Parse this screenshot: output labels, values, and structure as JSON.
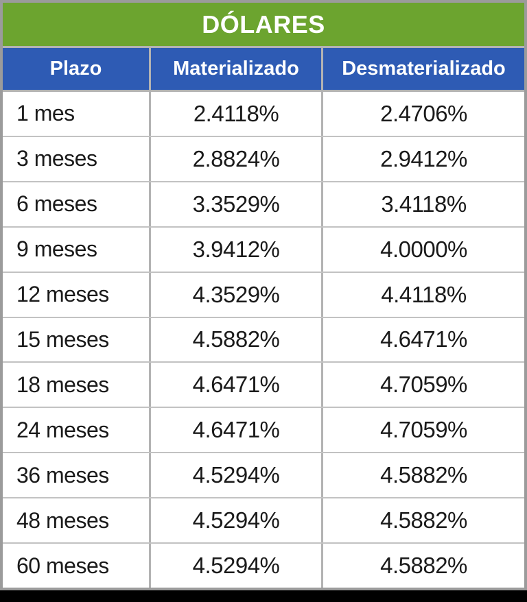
{
  "title": "DÓLARES",
  "columns": [
    "Plazo",
    "Materializado",
    "Desmaterializado"
  ],
  "rows": [
    {
      "plazo": "1 mes",
      "materializado": "2.4118%",
      "desmaterializado": "2.4706%"
    },
    {
      "plazo": "3 meses",
      "materializado": "2.8824%",
      "desmaterializado": "2.9412%"
    },
    {
      "plazo": "6 meses",
      "materializado": "3.3529%",
      "desmaterializado": "3.4118%"
    },
    {
      "plazo": "9 meses",
      "materializado": "3.9412%",
      "desmaterializado": "4.0000%"
    },
    {
      "plazo": "12 meses",
      "materializado": "4.3529%",
      "desmaterializado": "4.4118%"
    },
    {
      "plazo": "15 meses",
      "materializado": "4.5882%",
      "desmaterializado": "4.6471%"
    },
    {
      "plazo": "18 meses",
      "materializado": "4.6471%",
      "desmaterializado": "4.7059%"
    },
    {
      "plazo": "24 meses",
      "materializado": "4.6471%",
      "desmaterializado": "4.7059%"
    },
    {
      "plazo": "36 meses",
      "materializado": "4.5294%",
      "desmaterializado": "4.5882%"
    },
    {
      "plazo": "48 meses",
      "materializado": "4.5294%",
      "desmaterializado": "4.5882%"
    },
    {
      "plazo": "60 meses",
      "materializado": "4.5294%",
      "desmaterializado": "4.5882%"
    }
  ],
  "colors": {
    "title_bg": "#6CA42F",
    "header_bg": "#2E5BB4",
    "header_text": "#FFFFFF",
    "cell_text": "#1A1A1A",
    "outer_border": "#9B9B9B",
    "inner_border": "#C2C2C2",
    "bottom_bar": "#000000"
  },
  "chart_data": {
    "type": "table",
    "title": "DÓLARES",
    "columns": [
      "Plazo",
      "Materializado",
      "Desmaterializado"
    ],
    "rows": [
      [
        "1 mes",
        "2.4118%",
        "2.4706%"
      ],
      [
        "3 meses",
        "2.8824%",
        "2.9412%"
      ],
      [
        "6 meses",
        "3.3529%",
        "3.4118%"
      ],
      [
        "9 meses",
        "3.9412%",
        "4.0000%"
      ],
      [
        "12 meses",
        "4.3529%",
        "4.4118%"
      ],
      [
        "15 meses",
        "4.5882%",
        "4.6471%"
      ],
      [
        "18 meses",
        "4.6471%",
        "4.7059%"
      ],
      [
        "24 meses",
        "4.6471%",
        "4.7059%"
      ],
      [
        "36 meses",
        "4.5294%",
        "4.5882%"
      ],
      [
        "48 meses",
        "4.5294%",
        "4.5882%"
      ],
      [
        "60 meses",
        "4.5294%",
        "4.5882%"
      ]
    ]
  }
}
